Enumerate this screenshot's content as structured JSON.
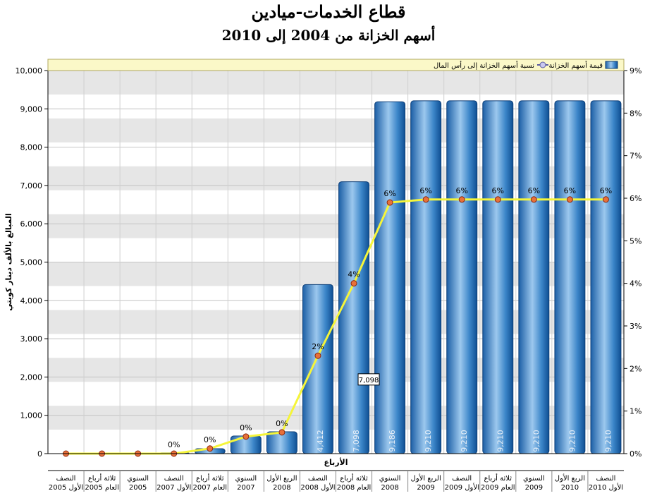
{
  "chart_data": {
    "type": "bar",
    "title": "قطاع الخدمات-ميادين",
    "subtitle": "أسهم الخزانة من 2004 إلى 2010",
    "xlabel": "الأرباع",
    "ylabel": "المبالغ بالألف دينار كويتي",
    "ylim": [
      0,
      10000
    ],
    "y_ticks": [
      "0",
      "1,000",
      "2,000",
      "3,000",
      "4,000",
      "5,000",
      "6,000",
      "7,000",
      "8,000",
      "9,000",
      "10,000"
    ],
    "y2lim": [
      0,
      9
    ],
    "y2_ticks": [
      "0%",
      "1%",
      "2%",
      "3%",
      "4%",
      "5%",
      "6%",
      "7%",
      "8%",
      "9%"
    ],
    "categories": [
      [
        "النصف",
        "الأول 2005"
      ],
      [
        "ثلاثة أرباع",
        "العام 2005"
      ],
      [
        "السنوي",
        "2005"
      ],
      [
        "النصف",
        "الأول 2007"
      ],
      [
        "ثلاثة أرباع",
        "العام 2007"
      ],
      [
        "السنوي",
        "2007"
      ],
      [
        "الربع الأول",
        "2008"
      ],
      [
        "النصف",
        "الأول 2008"
      ],
      [
        "ثلاثة أرباع",
        "العام 2008"
      ],
      [
        "السنوي",
        "2008"
      ],
      [
        "الربع الأول",
        "2009"
      ],
      [
        "النصف",
        "الأول 2009"
      ],
      [
        "ثلاثة أرباع",
        "العام 2009"
      ],
      [
        "السنوي",
        "2009"
      ],
      [
        "الربع الأول",
        "2010"
      ],
      [
        "النصف",
        "الأول 2010"
      ]
    ],
    "series": [
      {
        "name": "قيمة أسهم الخزانة",
        "type": "bar",
        "color": "#3a86c8",
        "values": [
          0,
          0,
          0,
          20,
          130,
          460,
          570,
          4412,
          7098,
          9186,
          9210,
          9210,
          9210,
          9210,
          9210,
          9210
        ],
        "labels": [
          "",
          "",
          "",
          "",
          "",
          "",
          "",
          "4,412",
          "7,098",
          "9,186",
          "9,210",
          "9,210",
          "9,210",
          "9,210",
          "9,210",
          "9,210"
        ]
      },
      {
        "name": "نسبة أسهم الخزانة إلى رأس المال",
        "type": "line",
        "axis": "right",
        "color": "#f5f53a",
        "values": [
          0,
          0,
          0,
          0,
          0.12,
          0.4,
          0.5,
          2.3,
          4.0,
          5.9,
          5.97,
          5.97,
          5.97,
          5.97,
          5.97,
          5.97
        ],
        "labels": [
          "",
          "",
          "",
          "0%",
          "0%",
          "0%",
          "0%",
          "2%",
          "4%",
          "6%",
          "6%",
          "6%",
          "6%",
          "6%",
          "6%",
          "6%"
        ]
      }
    ],
    "tooltip": "7,098",
    "legend_position": "top",
    "grid": true
  }
}
